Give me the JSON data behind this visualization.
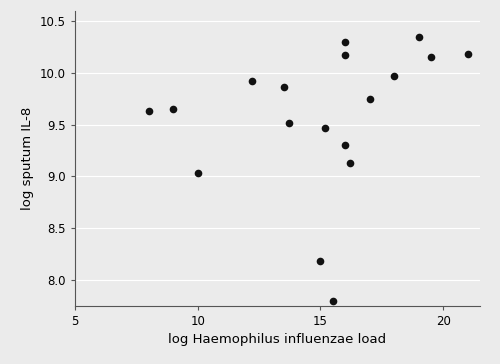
{
  "x_data": [
    8.0,
    9.0,
    10.0,
    12.2,
    13.5,
    13.7,
    15.0,
    15.2,
    15.5,
    16.0,
    16.0,
    16.0,
    16.2,
    17.0,
    18.0,
    19.0,
    19.5,
    21.0
  ],
  "y_data": [
    9.63,
    9.65,
    9.03,
    9.92,
    9.86,
    9.52,
    8.18,
    9.47,
    7.8,
    10.3,
    10.17,
    9.3,
    9.13,
    9.75,
    9.97,
    10.35,
    10.15,
    10.18
  ],
  "xlim": [
    5,
    21.5
  ],
  "ylim": [
    7.75,
    10.6
  ],
  "xticks": [
    5,
    10,
    15,
    20
  ],
  "yticks": [
    8.0,
    8.5,
    9.0,
    9.5,
    10.0,
    10.5
  ],
  "xlabel": "log Haemophilus influenzae load",
  "ylabel": "log sputum IL-8",
  "marker_color": "#111111",
  "marker_size": 5.5,
  "bg_color": "#ebebeb",
  "plot_bg_color": "#ebebeb",
  "grid_color": "#ffffff",
  "spine_color": "#555555",
  "xlabel_fontsize": 9.5,
  "ylabel_fontsize": 9.5,
  "tick_fontsize": 8.5
}
